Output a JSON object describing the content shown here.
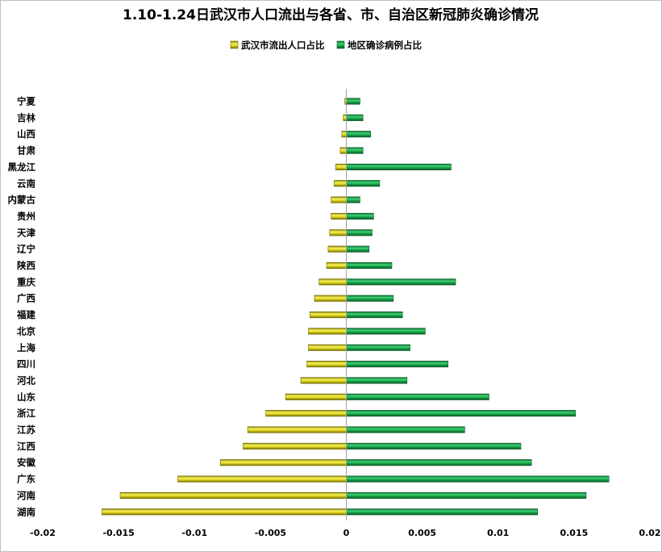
{
  "chart_data": {
    "type": "bar",
    "orientation": "horizontal",
    "title": "1.10-1.24日武汉市人口流出与各省、市、自治区新冠肺炎确诊情况",
    "legend_position": "top-center",
    "categories": [
      "宁夏",
      "吉林",
      "山西",
      "甘肃",
      "黑龙江",
      "云南",
      "内蒙古",
      "贵州",
      "天津",
      "辽宁",
      "陕西",
      "重庆",
      "广西",
      "福建",
      "北京",
      "上海",
      "四川",
      "河北",
      "山东",
      "浙江",
      "江苏",
      "江西",
      "安徽",
      "广东",
      "河南",
      "湖南"
    ],
    "series": [
      {
        "name": "武汉市流出人口占比",
        "color": "#d4c800",
        "values": [
          -0.0001,
          -0.0002,
          -0.0003,
          -0.0004,
          -0.0007,
          -0.0008,
          -0.001,
          -0.001,
          -0.0011,
          -0.0012,
          -0.0013,
          -0.0018,
          -0.0021,
          -0.0024,
          -0.0025,
          -0.0025,
          -0.0026,
          -0.003,
          -0.004,
          -0.0053,
          -0.0065,
          -0.0068,
          -0.0083,
          -0.0111,
          -0.0149,
          -0.0161
        ]
      },
      {
        "name": "地区确诊病例占比",
        "color": "#1aa64a",
        "values": [
          0.0009,
          0.0011,
          0.0016,
          0.0011,
          0.0069,
          0.0022,
          0.0009,
          0.0018,
          0.0017,
          0.0015,
          0.003,
          0.0072,
          0.0031,
          0.0037,
          0.0052,
          0.0042,
          0.0067,
          0.004,
          0.0094,
          0.0151,
          0.0078,
          0.0115,
          0.0122,
          0.0173,
          0.0158,
          0.0126
        ]
      }
    ],
    "xlim": [
      -0.02,
      0.02
    ],
    "xticks": [
      "-0.02",
      "-0.015",
      "-0.01",
      "-0.005",
      "0",
      "0.005",
      "0.01",
      "0.015",
      "0.02"
    ],
    "grid": false
  }
}
